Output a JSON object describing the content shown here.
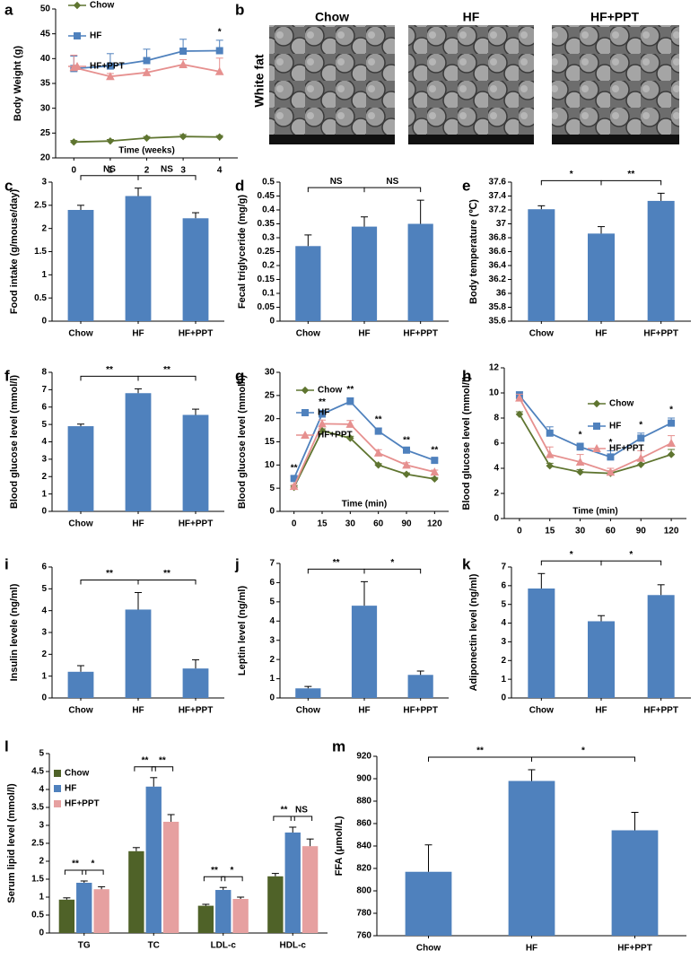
{
  "image_panel": {
    "panel": "b",
    "row_label": "White fat",
    "titles": [
      "Chow",
      "HF",
      "HF+PPT"
    ]
  },
  "chart_data": [
    {
      "panel": "a",
      "type": "line",
      "ylabel": "Body Weight (g)",
      "xlabel": "Time (weeks)",
      "categories": [
        "0",
        "1",
        "2",
        "3",
        "4"
      ],
      "ylim": [
        20,
        50
      ],
      "yticks": [
        20,
        25,
        30,
        35,
        40,
        45,
        50
      ],
      "legend": "upper left",
      "series": [
        {
          "name": "Chow",
          "color": "#5f7530",
          "marker": "diamond",
          "values": [
            23.2,
            23.4,
            24,
            24.3,
            24.2
          ],
          "errors": [
            0.3,
            0.3,
            0.3,
            0.4,
            0.3
          ]
        },
        {
          "name": "HF",
          "color": "#4f81bd",
          "marker": "square",
          "values": [
            38,
            38.5,
            39.6,
            41.5,
            41.6
          ],
          "errors": [
            2.5,
            2.5,
            2.3,
            2.4,
            2.1
          ]
        },
        {
          "name": "HF+PPT",
          "color": "#e6908f",
          "marker": "triangle",
          "values": [
            38.2,
            36.4,
            37.2,
            38.8,
            37.4
          ],
          "errors": [
            2.5,
            0.6,
            0.7,
            1,
            2.7
          ]
        }
      ],
      "annotations": [
        null,
        null,
        null,
        null,
        "*"
      ]
    },
    {
      "panel": "c",
      "type": "bar",
      "ylabel": "Food intake (g/mouse/day)",
      "categories": [
        "Chow",
        "HF",
        "HF+PPT"
      ],
      "values": [
        2.4,
        2.7,
        2.22
      ],
      "errors": [
        0.1,
        0.17,
        0.12
      ],
      "color": "#4f81bd",
      "ylim": [
        0,
        3
      ],
      "yticks": [
        0,
        0.5,
        1,
        1.5,
        2,
        2.5,
        3
      ],
      "significance": [
        "NS",
        "NS"
      ]
    },
    {
      "panel": "d",
      "type": "bar",
      "ylabel": "Fecal triglyceride (mg/g)",
      "categories": [
        "Chow",
        "HF",
        "HF+PPT"
      ],
      "values": [
        0.27,
        0.34,
        0.35
      ],
      "errors": [
        0.04,
        0.035,
        0.085
      ],
      "color": "#4f81bd",
      "ylim": [
        0,
        0.5
      ],
      "yticks": [
        0,
        0.05,
        0.1,
        0.15,
        0.2,
        0.25,
        0.3,
        0.35,
        0.4,
        0.45,
        0.5
      ],
      "significance": [
        "NS",
        "NS"
      ]
    },
    {
      "panel": "e",
      "type": "bar",
      "ylabel": "Body temperature (℃)",
      "categories": [
        "Chow",
        "HF",
        "HF+PPT"
      ],
      "values": [
        37.21,
        36.86,
        37.33
      ],
      "errors": [
        0.05,
        0.1,
        0.11
      ],
      "color": "#4f81bd",
      "ylim": [
        35.6,
        37.6
      ],
      "yticks": [
        35.6,
        35.8,
        36,
        36.2,
        36.4,
        36.6,
        36.8,
        37,
        37.2,
        37.4,
        37.6
      ],
      "significance": [
        "*",
        "**"
      ]
    },
    {
      "panel": "f",
      "type": "bar",
      "ylabel": "Blood glucose level (mmol/l)",
      "categories": [
        "Chow",
        "HF",
        "HF+PPT"
      ],
      "values": [
        4.9,
        6.8,
        5.55
      ],
      "errors": [
        0.12,
        0.25,
        0.33
      ],
      "color": "#4f81bd",
      "ylim": [
        0,
        8
      ],
      "yticks": [
        0,
        1,
        2,
        3,
        4,
        5,
        6,
        7,
        8
      ],
      "significance": [
        "**",
        "**"
      ]
    },
    {
      "panel": "g",
      "type": "line",
      "ylabel": "Blood glucose level (mmol/l)",
      "xlabel": "Time (min)",
      "categories": [
        "0",
        "15",
        "30",
        "60",
        "90",
        "120"
      ],
      "ylim": [
        0,
        30
      ],
      "yticks": [
        0,
        5,
        10,
        15,
        20,
        25,
        30
      ],
      "legend": "upper left",
      "series": [
        {
          "name": "Chow",
          "color": "#5f7530",
          "marker": "diamond",
          "values": [
            5.2,
            17.4,
            15.8,
            10,
            8,
            7
          ],
          "errors": [
            0.3,
            0.4,
            0.4,
            0.3,
            0.3,
            0.3
          ]
        },
        {
          "name": "HF",
          "color": "#4f81bd",
          "marker": "square",
          "values": [
            7.1,
            21,
            23.7,
            17.3,
            13.2,
            11
          ],
          "errors": [
            0.5,
            0.8,
            0.8,
            0.7,
            0.4,
            0.4
          ]
        },
        {
          "name": "HF+PPT",
          "color": "#e6908f",
          "marker": "triangle",
          "values": [
            5.4,
            18.9,
            18.8,
            12.6,
            10,
            8.5
          ],
          "errors": [
            0.4,
            0.8,
            0.8,
            0.7,
            0.5,
            0.4
          ]
        }
      ],
      "annotations": [
        "**",
        "**",
        "**",
        "**",
        "**",
        "**"
      ]
    },
    {
      "panel": "h",
      "type": "line",
      "ylabel": "Blood glucose level (mmol/l)",
      "xlabel": "Time (min)",
      "categories": [
        "0",
        "15",
        "30",
        "60",
        "90",
        "120"
      ],
      "ylim": [
        0,
        12
      ],
      "yticks": [
        0,
        2,
        4,
        6,
        8,
        10,
        12
      ],
      "legend": "upper left",
      "series": [
        {
          "name": "Chow",
          "color": "#5f7530",
          "marker": "diamond",
          "values": [
            8.3,
            4.2,
            3.7,
            3.6,
            4.3,
            5.1
          ],
          "errors": [
            0.2,
            0.2,
            0.2,
            0.2,
            0.3,
            0.4
          ]
        },
        {
          "name": "HF",
          "color": "#4f81bd",
          "marker": "square",
          "values": [
            9.8,
            6.8,
            5.7,
            4.9,
            6.4,
            7.6
          ],
          "errors": [
            0.3,
            0.5,
            0.3,
            0.5,
            0.4,
            0.4
          ]
        },
        {
          "name": "HF+PPT",
          "color": "#e6908f",
          "marker": "triangle",
          "values": [
            9.6,
            5.1,
            4.5,
            3.7,
            4.8,
            6
          ],
          "errors": [
            0.3,
            0.6,
            0.6,
            0.3,
            0.6,
            0.6
          ]
        }
      ],
      "annotations": [
        null,
        null,
        "*",
        "*",
        "*",
        "*"
      ]
    },
    {
      "panel": "i",
      "type": "bar",
      "ylabel": "Insulin levele (ng/ml)",
      "categories": [
        "Chow",
        "HF",
        "HF+PPT"
      ],
      "values": [
        1.2,
        4.05,
        1.35
      ],
      "errors": [
        0.28,
        0.78,
        0.4
      ],
      "color": "#4f81bd",
      "ylim": [
        0,
        6
      ],
      "yticks": [
        0,
        1,
        2,
        3,
        4,
        5,
        6
      ],
      "significance": [
        "**",
        "**"
      ]
    },
    {
      "panel": "j",
      "type": "bar",
      "ylabel": "Leptin level (ng/ml)",
      "categories": [
        "Chow",
        "HF",
        "HF+PPT"
      ],
      "values": [
        0.5,
        4.8,
        1.2
      ],
      "errors": [
        0.1,
        1.25,
        0.2
      ],
      "color": "#4f81bd",
      "ylim": [
        0,
        7
      ],
      "yticks": [
        0,
        1,
        2,
        3,
        4,
        5,
        6,
        7
      ],
      "significance": [
        "**",
        "*"
      ]
    },
    {
      "panel": "k",
      "type": "bar",
      "ylabel": "Adiponectin level (ng/ml)",
      "categories": [
        "Chow",
        "HF",
        "HF+PPT"
      ],
      "values": [
        5.85,
        4.1,
        5.5
      ],
      "errors": [
        0.8,
        0.3,
        0.55
      ],
      "color": "#4f81bd",
      "ylim": [
        0,
        7
      ],
      "yticks": [
        0,
        1,
        2,
        3,
        4,
        5,
        6,
        7
      ],
      "significance": [
        "*",
        "*"
      ]
    },
    {
      "panel": "l",
      "type": "grouped_bar",
      "ylabel": "Serum lipid level (mmol/l)",
      "categories": [
        "TG",
        "TC",
        "LDL-c",
        "HDL-c"
      ],
      "ylim": [
        0,
        5
      ],
      "yticks": [
        0,
        0.5,
        1,
        1.5,
        2,
        2.5,
        3,
        3.5,
        4,
        4.5,
        5
      ],
      "legend": "upper left",
      "series": [
        {
          "name": "Chow",
          "color": "#4f6228",
          "values": [
            0.93,
            2.28,
            0.76,
            1.58
          ],
          "errors": [
            0.05,
            0.1,
            0.04,
            0.08
          ]
        },
        {
          "name": "HF",
          "color": "#4f81bd",
          "values": [
            1.4,
            4.08,
            1.2,
            2.8
          ],
          "errors": [
            0.05,
            0.25,
            0.07,
            0.15
          ]
        },
        {
          "name": "HF+PPT",
          "color": "#e6a0a0",
          "values": [
            1.22,
            3.1,
            0.95,
            2.42
          ],
          "errors": [
            0.07,
            0.2,
            0.05,
            0.2
          ]
        }
      ],
      "significance": [
        [
          "**",
          "*"
        ],
        [
          "**",
          "**"
        ],
        [
          "**",
          "*"
        ],
        [
          "**",
          "NS"
        ]
      ]
    },
    {
      "panel": "m",
      "type": "bar",
      "ylabel": "FFA (μmol/L)",
      "categories": [
        "Chow",
        "HF",
        "HF+PPT"
      ],
      "values": [
        817,
        898,
        854
      ],
      "errors": [
        24,
        10,
        16
      ],
      "color": "#4f81bd",
      "ylim": [
        760,
        920
      ],
      "yticks": [
        760,
        780,
        800,
        820,
        840,
        860,
        880,
        900,
        920
      ],
      "significance": [
        "**",
        "*"
      ]
    }
  ]
}
